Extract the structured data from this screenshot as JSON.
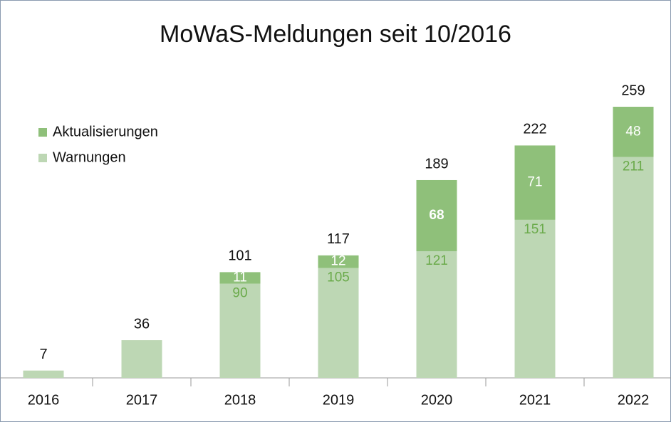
{
  "chart_data": {
    "type": "stacked_bar",
    "title": "MoWaS-Meldungen seit 10/2016",
    "categories": [
      "2016",
      "2017",
      "2018",
      "2019",
      "2020",
      "2021",
      "2022"
    ],
    "series": [
      {
        "name": "Warnungen",
        "color": "#bdd7b4",
        "label_color": "#6aaa4a",
        "values": [
          7,
          36,
          90,
          105,
          121,
          151,
          211
        ]
      },
      {
        "name": "Aktualisierungen",
        "color": "#8fc07a",
        "label_color": "#ffffff",
        "values": [
          null,
          null,
          11,
          12,
          68,
          71,
          48
        ]
      }
    ],
    "totals": [
      7,
      36,
      101,
      117,
      189,
      222,
      259
    ],
    "legend": "upper left"
  }
}
